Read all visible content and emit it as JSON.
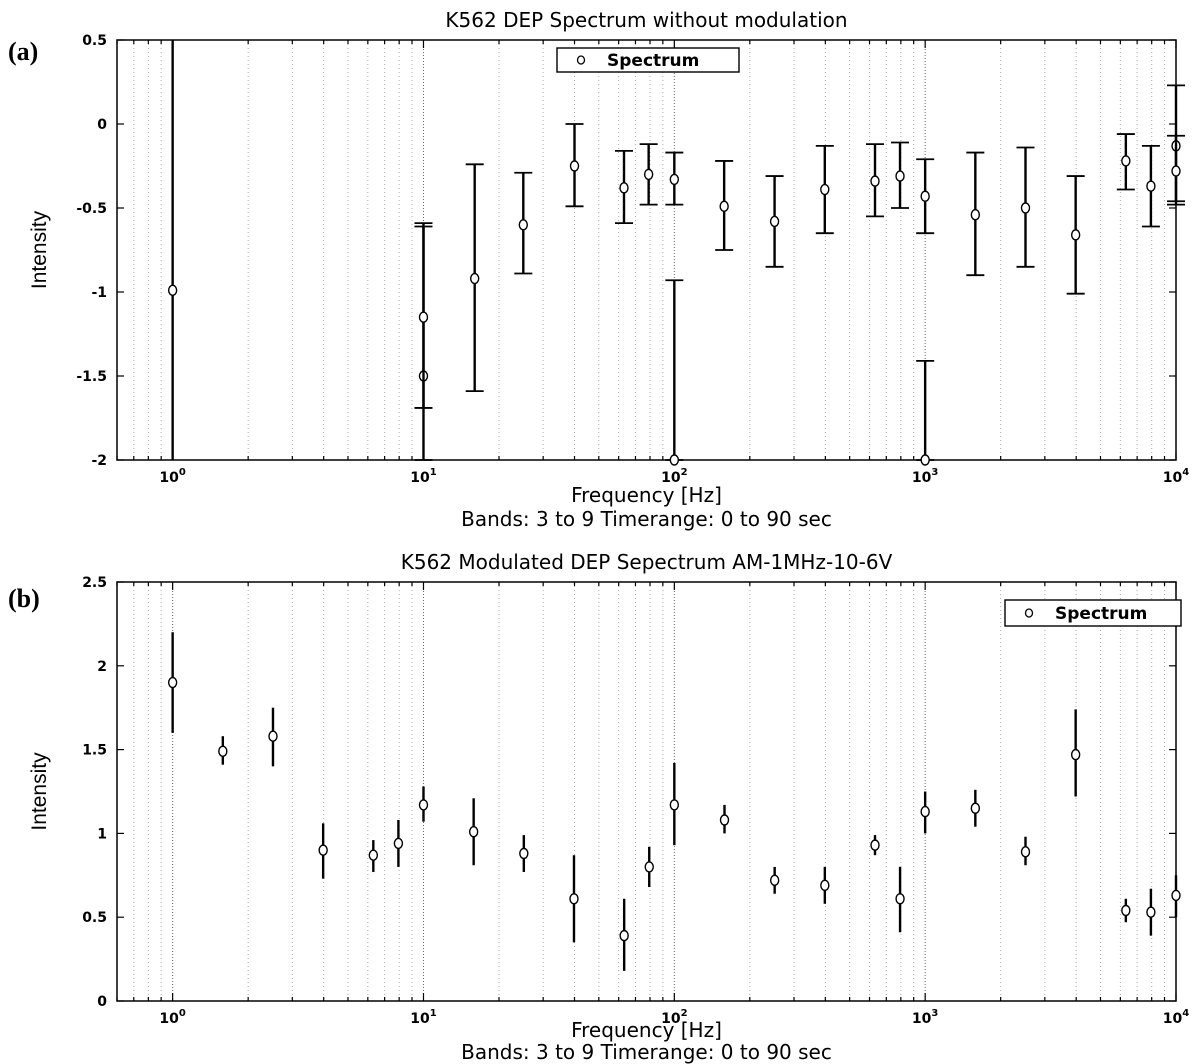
{
  "chart_data": [
    {
      "type": "scatter",
      "panel_label": "(a)",
      "title": "K562 DEP Spectrum without modulation",
      "xlabel": "Frequency [Hz]",
      "xlabel2": "Bands: 3 to 9 Timerange: 0 to 90 sec",
      "ylabel": "Intensity",
      "xscale": "log",
      "xlim": [
        0.6,
        10000
      ],
      "ylim": [
        -2,
        0.5
      ],
      "yticks": [
        "-2",
        "-1.5",
        "-1",
        "-0.5",
        "0",
        "0.5"
      ],
      "grid": true,
      "legend_position": "top-center",
      "series": [
        {
          "name": "Spectrum",
          "error_bars": true,
          "points": [
            {
              "x": 1,
              "y": -0.99,
              "lo": -2,
              "hi": 0.5,
              "cap": false
            },
            {
              "x": 10,
              "y": -1.5,
              "lo": -2,
              "hi": -0.61,
              "cap": true
            },
            {
              "x": 10,
              "y": -1.15,
              "lo": -1.69,
              "hi": -0.59,
              "cap": true
            },
            {
              "x": 16,
              "y": -0.92,
              "lo": -1.59,
              "hi": -0.24,
              "cap": true
            },
            {
              "x": 25,
              "y": -0.6,
              "lo": -0.89,
              "hi": -0.29,
              "cap": true
            },
            {
              "x": 40,
              "y": -0.25,
              "lo": -0.49,
              "hi": 0,
              "cap": true
            },
            {
              "x": 63,
              "y": -0.38,
              "lo": -0.59,
              "hi": -0.16,
              "cap": true
            },
            {
              "x": 79,
              "y": -0.3,
              "lo": -0.48,
              "hi": -0.12,
              "cap": true
            },
            {
              "x": 100,
              "y": -0.33,
              "lo": -0.48,
              "hi": -0.17,
              "cap": true
            },
            {
              "x": 100,
              "y": -2,
              "lo": -2,
              "hi": -0.93,
              "cap": true
            },
            {
              "x": 158,
              "y": -0.49,
              "lo": -0.75,
              "hi": -0.22,
              "cap": true
            },
            {
              "x": 251,
              "y": -0.58,
              "lo": -0.85,
              "hi": -0.31,
              "cap": true
            },
            {
              "x": 398,
              "y": -0.39,
              "lo": -0.65,
              "hi": -0.13,
              "cap": true
            },
            {
              "x": 631,
              "y": -0.34,
              "lo": -0.55,
              "hi": -0.12,
              "cap": true
            },
            {
              "x": 794,
              "y": -0.31,
              "lo": -0.5,
              "hi": -0.11,
              "cap": true
            },
            {
              "x": 1000,
              "y": -0.43,
              "lo": -0.65,
              "hi": -0.21,
              "cap": true
            },
            {
              "x": 1000,
              "y": -2,
              "lo": -2,
              "hi": -1.41,
              "cap": true
            },
            {
              "x": 1585,
              "y": -0.54,
              "lo": -0.9,
              "hi": -0.17,
              "cap": true
            },
            {
              "x": 2512,
              "y": -0.5,
              "lo": -0.85,
              "hi": -0.14,
              "cap": true
            },
            {
              "x": 3981,
              "y": -0.66,
              "lo": -1.01,
              "hi": -0.31,
              "cap": true
            },
            {
              "x": 6310,
              "y": -0.22,
              "lo": -0.39,
              "hi": -0.06,
              "cap": true
            },
            {
              "x": 7943,
              "y": -0.37,
              "lo": -0.61,
              "hi": -0.13,
              "cap": true
            },
            {
              "x": 10000,
              "y": -0.13,
              "lo": -0.46,
              "hi": 0.23,
              "cap": true
            },
            {
              "x": 10000,
              "y": -0.28,
              "lo": -0.48,
              "hi": -0.07,
              "cap": true
            }
          ]
        }
      ]
    },
    {
      "type": "scatter",
      "panel_label": "(b)",
      "title": "K562 Modulated DEP Sepectrum AM-1MHz-10-6V",
      "xlabel": "Frequency [Hz]",
      "xlabel2": "Bands: 3 to 9 Timerange: 0 to 90 sec",
      "ylabel": "Intensity",
      "xscale": "log",
      "xlim": [
        0.6,
        10000
      ],
      "ylim": [
        0,
        2.5
      ],
      "yticks": [
        "0",
        "0.5",
        "1",
        "1.5",
        "2",
        "2.5"
      ],
      "grid": true,
      "legend_position": "top-right",
      "series": [
        {
          "name": "Spectrum",
          "error_bars": true,
          "points": [
            {
              "x": 1,
              "y": 1.9,
              "lo": 1.6,
              "hi": 2.2,
              "cap": false
            },
            {
              "x": 1.585,
              "y": 1.49,
              "lo": 1.41,
              "hi": 1.58,
              "cap": false
            },
            {
              "x": 2.512,
              "y": 1.58,
              "lo": 1.4,
              "hi": 1.75,
              "cap": false
            },
            {
              "x": 3.981,
              "y": 0.9,
              "lo": 0.73,
              "hi": 1.06,
              "cap": false
            },
            {
              "x": 6.31,
              "y": 0.87,
              "lo": 0.77,
              "hi": 0.96,
              "cap": false
            },
            {
              "x": 7.943,
              "y": 0.94,
              "lo": 0.8,
              "hi": 1.08,
              "cap": false
            },
            {
              "x": 10,
              "y": 1.17,
              "lo": 1.07,
              "hi": 1.28,
              "cap": false
            },
            {
              "x": 15.85,
              "y": 1.01,
              "lo": 0.81,
              "hi": 1.21,
              "cap": false
            },
            {
              "x": 25.12,
              "y": 0.88,
              "lo": 0.77,
              "hi": 0.99,
              "cap": false
            },
            {
              "x": 39.81,
              "y": 0.61,
              "lo": 0.35,
              "hi": 0.87,
              "cap": false
            },
            {
              "x": 63.1,
              "y": 0.39,
              "lo": 0.18,
              "hi": 0.61,
              "cap": false
            },
            {
              "x": 79.43,
              "y": 0.8,
              "lo": 0.68,
              "hi": 0.92,
              "cap": false
            },
            {
              "x": 100,
              "y": 1.17,
              "lo": 0.93,
              "hi": 1.42,
              "cap": false
            },
            {
              "x": 158.5,
              "y": 1.08,
              "lo": 1,
              "hi": 1.17,
              "cap": false
            },
            {
              "x": 251.2,
              "y": 0.72,
              "lo": 0.64,
              "hi": 0.8,
              "cap": false
            },
            {
              "x": 398.1,
              "y": 0.69,
              "lo": 0.58,
              "hi": 0.8,
              "cap": false
            },
            {
              "x": 631,
              "y": 0.93,
              "lo": 0.87,
              "hi": 0.99,
              "cap": false
            },
            {
              "x": 794.3,
              "y": 0.61,
              "lo": 0.41,
              "hi": 0.8,
              "cap": false
            },
            {
              "x": 1000,
              "y": 1.13,
              "lo": 1,
              "hi": 1.25,
              "cap": false
            },
            {
              "x": 1585,
              "y": 1.15,
              "lo": 1.04,
              "hi": 1.26,
              "cap": false
            },
            {
              "x": 2512,
              "y": 0.89,
              "lo": 0.81,
              "hi": 0.98,
              "cap": false
            },
            {
              "x": 3981,
              "y": 1.47,
              "lo": 1.22,
              "hi": 1.74,
              "cap": false
            },
            {
              "x": 6310,
              "y": 0.54,
              "lo": 0.47,
              "hi": 0.61,
              "cap": false
            },
            {
              "x": 7943,
              "y": 0.53,
              "lo": 0.39,
              "hi": 0.67,
              "cap": false
            },
            {
              "x": 10000,
              "y": 0.63,
              "lo": 0.5,
              "hi": 0.75,
              "cap": false
            }
          ]
        }
      ]
    }
  ]
}
